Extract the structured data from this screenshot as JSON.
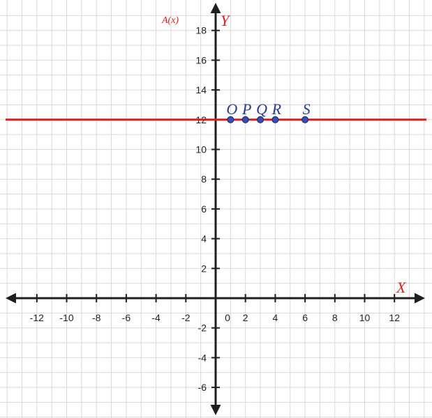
{
  "chart_data": {
    "type": "scatter",
    "title": "",
    "xlabel": "X",
    "ylabel": "Y",
    "function_label": "A(x)",
    "xlim": [
      -14,
      14
    ],
    "ylim": [
      -8,
      19
    ],
    "grid": true,
    "x_ticks": [
      -12,
      -10,
      -8,
      -6,
      -4,
      -2,
      0,
      2,
      4,
      6,
      8,
      10,
      12
    ],
    "x_tick_labels": [
      "-12",
      "-10",
      "-8",
      "-6",
      "-4",
      "-2",
      "0",
      "2",
      "4",
      "6",
      "8",
      "10",
      "12"
    ],
    "y_ticks": [
      -6,
      -4,
      -2,
      2,
      4,
      6,
      8,
      10,
      12,
      14,
      16,
      18
    ],
    "y_tick_labels": [
      "-6",
      "-4",
      "-2",
      "2",
      "4",
      "6",
      "8",
      "10",
      "12",
      "14",
      "16",
      "18"
    ],
    "line": {
      "y": 12,
      "color": "#d32222"
    },
    "points": [
      {
        "label": "O",
        "x": 1,
        "y": 12
      },
      {
        "label": "P",
        "x": 2,
        "y": 12
      },
      {
        "label": "Q",
        "x": 3,
        "y": 12
      },
      {
        "label": "R",
        "x": 4,
        "y": 12
      },
      {
        "label": "S",
        "x": 6,
        "y": 12
      }
    ],
    "colors": {
      "axis": "#1f1f1f",
      "axis_label": "#d32222",
      "line": "#d32222",
      "point_fill": "#3b4fa8",
      "point_stroke": "#1f2d7a",
      "point_label": "#2a3a8c",
      "grid": "#d9d9d9"
    }
  }
}
